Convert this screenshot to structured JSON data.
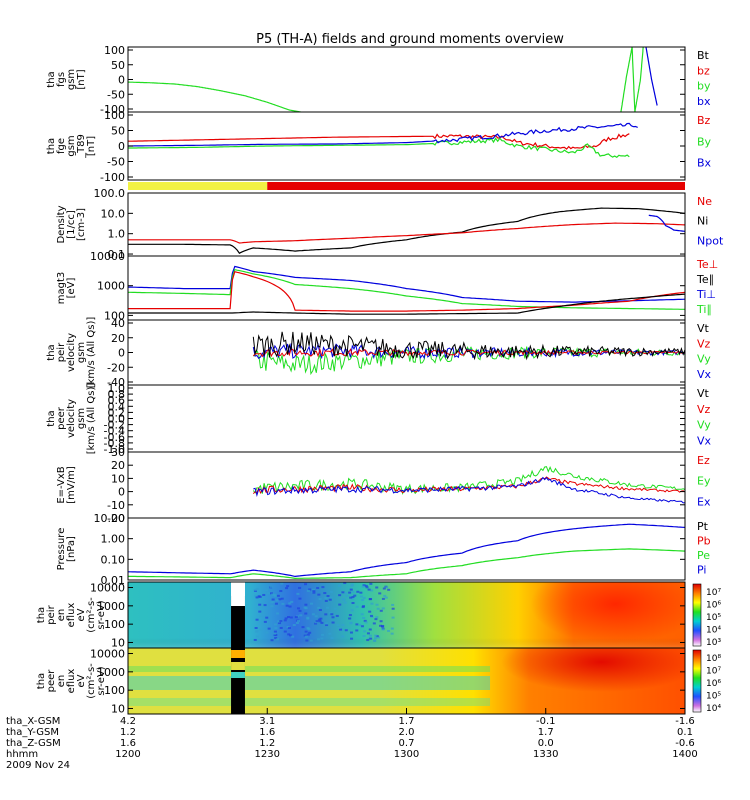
{
  "title": "P5 (TH-A) fields and ground moments overview",
  "colors": {
    "black": "#000000",
    "red": "#e60000",
    "green": "#22dd22",
    "blue": "#0000dd",
    "yellow": "#f2f244"
  },
  "chart_data": [
    {
      "type": "line",
      "panel": "fgs",
      "ylabel": [
        "tha",
        "fgs",
        "gsm",
        "[nT]"
      ],
      "ylim": [
        -100,
        100
      ],
      "ticks": [
        "100",
        "50",
        "0",
        "-50",
        "-100"
      ],
      "legend": [
        {
          "label": "Bt",
          "color": "#000000"
        },
        {
          "label": "bz",
          "color": "#e60000"
        },
        {
          "label": "by",
          "color": "#22dd22"
        },
        {
          "label": "bx",
          "color": "#0000dd"
        }
      ],
      "series": [
        {
          "color": "#22dd22",
          "x": [
            12.0,
            12.08,
            12.17,
            12.25,
            12.33,
            12.42,
            12.5,
            12.58,
            12.62
          ],
          "y": [
            -8,
            -10,
            -14,
            -22,
            -34,
            -50,
            -70,
            -94,
            -100
          ]
        },
        {
          "color": "#22dd22",
          "x": [
            13.77,
            13.79,
            13.81,
            13.82,
            13.84,
            13.85
          ],
          "y": [
            -100,
            10,
            100,
            -100,
            0,
            100
          ]
        },
        {
          "color": "#0000dd",
          "x": [
            13.86,
            13.87,
            13.88,
            13.9,
            13.9
          ],
          "y": [
            100,
            50,
            0,
            -80,
            -100
          ]
        }
      ]
    },
    {
      "type": "line",
      "panel": "fge",
      "ylabel": [
        "tha",
        "fge",
        "gsm",
        "_T89",
        "[nT]"
      ],
      "ylim": [
        -100,
        100
      ],
      "ticks": [
        "100",
        "50",
        "0",
        "-50",
        "-100"
      ],
      "legend": [
        {
          "label": "Bz",
          "color": "#e60000"
        },
        {
          "label": "By",
          "color": "#22dd22"
        },
        {
          "label": "Bx",
          "color": "#0000dd"
        }
      ],
      "series": [
        {
          "color": "#e60000",
          "x": [
            12.0,
            12.25,
            12.5,
            12.75,
            13.0,
            13.17,
            13.35,
            13.4,
            13.5,
            13.6,
            13.68,
            13.72,
            13.8
          ],
          "y": [
            14,
            18,
            22,
            26,
            28,
            29,
            25,
            10,
            0,
            -8,
            0,
            20,
            35
          ]
        },
        {
          "color": "#22dd22",
          "x": [
            12.0,
            12.25,
            12.5,
            12.75,
            13.0,
            13.17,
            13.33,
            13.4,
            13.5,
            13.6,
            13.65,
            13.7,
            13.8
          ],
          "y": [
            -6,
            -4,
            0,
            2,
            4,
            10,
            18,
            0,
            -10,
            -20,
            0,
            -28,
            -30
          ]
        },
        {
          "color": "#0000dd",
          "x": [
            12.0,
            12.25,
            12.5,
            12.75,
            13.0,
            13.17,
            13.33,
            13.5,
            13.67,
            13.75,
            13.82,
            13.83
          ],
          "y": [
            0,
            2,
            5,
            6,
            10,
            18,
            30,
            45,
            55,
            58,
            62,
            50
          ]
        }
      ],
      "spiky": true
    },
    {
      "type": "table",
      "panel": "mode-bar",
      "segments": [
        {
          "x0": 12.0,
          "x1": 12.5,
          "color": "#f2f244"
        },
        {
          "x0": 12.5,
          "x1": 14.0,
          "color": "#e60000"
        }
      ]
    },
    {
      "type": "line",
      "panel": "density",
      "yscale": "log",
      "ylabel": [
        "Density",
        "[1/cc]",
        "[cm-3]"
      ],
      "ylim": [
        0.08,
        100
      ],
      "ticks": [
        "100.0",
        "10.0",
        "1.0",
        "0.1"
      ],
      "tickvals": [
        100,
        10,
        1,
        0.1
      ],
      "legend": [
        {
          "label": "Ne",
          "color": "#e60000"
        },
        {
          "label": "Ni",
          "color": "#000000"
        },
        {
          "label": "Npot",
          "color": "#0000dd"
        }
      ],
      "series": [
        {
          "color": "#000000",
          "x": [
            12.0,
            12.2,
            12.37,
            12.4,
            12.45,
            12.6,
            12.8,
            13.0,
            13.2,
            13.4,
            13.55,
            13.7,
            13.83,
            13.9,
            14.0
          ],
          "y": [
            0.3,
            0.3,
            0.28,
            0.11,
            0.2,
            0.14,
            0.2,
            0.5,
            1.2,
            4,
            12,
            18,
            17,
            14,
            10
          ]
        },
        {
          "color": "#e60000",
          "x": [
            12.0,
            12.37,
            12.4,
            12.45,
            12.6,
            12.8,
            13.0,
            13.2,
            13.4,
            13.6,
            13.75,
            13.9,
            14.0
          ],
          "y": [
            0.5,
            0.5,
            0.35,
            0.4,
            0.45,
            0.6,
            0.8,
            1.1,
            1.8,
            2.8,
            3.3,
            3.1,
            2.7
          ]
        },
        {
          "color": "#0000dd",
          "x": [
            13.87,
            13.9,
            13.93,
            13.96,
            14.0
          ],
          "y": [
            8,
            7,
            2.5,
            1.5,
            1.3
          ]
        }
      ]
    },
    {
      "type": "line",
      "panel": "temperature",
      "yscale": "log",
      "ylabel": [
        "magt3",
        "[eV]"
      ],
      "ylim": [
        70,
        10000
      ],
      "ticks": [
        "10000",
        "1000",
        "100"
      ],
      "tickvals": [
        10000,
        1000,
        100
      ],
      "legend": [
        {
          "label": "Te⊥",
          "color": "#e60000"
        },
        {
          "label": "Te∥",
          "color": "#000000"
        },
        {
          "label": "Ti⊥",
          "color": "#0000dd"
        },
        {
          "label": "Ti∥",
          "color": "#22dd22"
        }
      ],
      "series": [
        {
          "color": "#0000dd",
          "x": [
            12.0,
            12.2,
            12.37,
            12.38,
            12.45,
            12.6,
            12.8,
            13.0,
            13.2,
            13.4,
            13.6,
            13.8,
            14.0
          ],
          "y": [
            900,
            800,
            800,
            4500,
            3000,
            1900,
            1500,
            800,
            400,
            300,
            280,
            310,
            350
          ]
        },
        {
          "color": "#22dd22",
          "x": [
            12.0,
            12.2,
            12.37,
            12.38,
            12.45,
            12.6,
            12.8,
            13.0,
            13.2,
            13.4,
            13.6,
            13.8,
            14.0
          ],
          "y": [
            600,
            550,
            500,
            3500,
            2500,
            1100,
            800,
            450,
            250,
            200,
            180,
            170,
            160
          ]
        },
        {
          "color": "#e60000",
          "x": [
            12.0,
            12.37,
            12.38,
            12.45,
            12.6,
            12.8,
            13.0,
            13.2,
            13.4,
            13.6,
            13.8,
            14.0
          ],
          "y": [
            170,
            170,
            3000,
            2000,
            150,
            140,
            140,
            150,
            170,
            220,
            300,
            600
          ]
        },
        {
          "color": "#000000",
          "x": [
            12.0,
            12.37,
            12.45,
            12.6,
            12.8,
            13.0,
            13.2,
            13.4,
            13.55,
            13.7,
            13.85,
            14.0
          ],
          "y": [
            120,
            120,
            130,
            120,
            110,
            110,
            115,
            120,
            200,
            300,
            400,
            520
          ]
        }
      ]
    },
    {
      "type": "line",
      "panel": "peir",
      "ylabel": [
        "tha",
        "peir",
        "velocity",
        "gsm",
        "[km/s (All Qs)]"
      ],
      "ylim": [
        -40,
        40
      ],
      "ticks": [
        "40",
        "20",
        "0",
        "-20",
        "-40"
      ],
      "legend": [
        {
          "label": "Vt",
          "color": "#000000"
        },
        {
          "label": "Vz",
          "color": "#e60000"
        },
        {
          "label": "Vy",
          "color": "#22dd22"
        },
        {
          "label": "Vx",
          "color": "#0000dd"
        }
      ],
      "series": [
        {
          "color": "#22dd22",
          "x": [
            12.45,
            12.6,
            12.8,
            13.0,
            13.2,
            13.4,
            13.6,
            13.8,
            14.0
          ],
          "y": [
            -10,
            -15,
            -10,
            -5,
            -2,
            0,
            0,
            0,
            0
          ],
          "noise": 14
        },
        {
          "color": "#0000dd",
          "x": [
            12.45,
            12.6,
            12.8,
            13.0,
            13.2,
            13.4,
            13.6,
            13.8,
            14.0
          ],
          "y": [
            0,
            2,
            2,
            0,
            0,
            0,
            0,
            0,
            0
          ],
          "noise": 10
        },
        {
          "color": "#e60000",
          "x": [
            12.45,
            12.6,
            12.8,
            13.0,
            13.2,
            13.4,
            13.6,
            13.8,
            14.0
          ],
          "y": [
            0,
            0,
            0,
            0,
            0,
            0,
            0,
            0,
            0
          ],
          "noise": 5
        },
        {
          "color": "#000000",
          "x": [
            12.45,
            12.6,
            12.8,
            13.0,
            13.2,
            13.4,
            13.6,
            13.8,
            14.0
          ],
          "y": [
            8,
            12,
            8,
            4,
            2,
            1,
            1,
            1,
            1
          ],
          "noise": 16
        }
      ]
    },
    {
      "type": "line",
      "panel": "peer",
      "ylabel": [
        "tha",
        "peer",
        "velocity",
        "gsm",
        "[km/s (All Qs)]"
      ],
      "ylim": [
        -1,
        1
      ],
      "ticks": [
        "1.0",
        "0.8",
        "0.6",
        "0.4",
        "0.2",
        "0.0",
        "-0.2",
        "-0.4",
        "-0.6",
        "-0.8",
        "-1.0"
      ],
      "legend": [
        {
          "label": "Vt",
          "color": "#000000"
        },
        {
          "label": "Vz",
          "color": "#e60000"
        },
        {
          "label": "Vy",
          "color": "#22dd22"
        },
        {
          "label": "Vx",
          "color": "#0000dd"
        }
      ],
      "series": []
    },
    {
      "type": "line",
      "panel": "efield",
      "ylabel": [
        "E=-VxB",
        "[mV/m]"
      ],
      "ylim": [
        -20,
        30
      ],
      "ticks": [
        "30",
        "20",
        "10",
        "0",
        "-10",
        "-20"
      ],
      "tickvals": [
        30,
        20,
        10,
        0,
        -10,
        -20
      ],
      "legend": [
        {
          "label": "Ez",
          "color": "#e60000"
        },
        {
          "label": "Ey",
          "color": "#22dd22"
        },
        {
          "label": "Ex",
          "color": "#0000dd"
        }
      ],
      "series": [
        {
          "color": "#22dd22",
          "x": [
            12.45,
            12.6,
            12.8,
            13.0,
            13.2,
            13.4,
            13.5,
            13.6,
            13.8,
            14.0
          ],
          "y": [
            2,
            4,
            6,
            2,
            3,
            8,
            18,
            12,
            5,
            2
          ],
          "noise": 5
        },
        {
          "color": "#e60000",
          "x": [
            12.45,
            12.6,
            12.8,
            13.0,
            13.2,
            13.4,
            13.5,
            13.6,
            13.8,
            14.0
          ],
          "y": [
            1,
            2,
            3,
            1,
            2,
            4,
            10,
            6,
            2,
            0
          ],
          "noise": 3
        },
        {
          "color": "#0000dd",
          "x": [
            12.45,
            12.6,
            12.8,
            13.0,
            13.2,
            13.4,
            13.5,
            13.6,
            13.8,
            14.0
          ],
          "y": [
            0,
            1,
            2,
            1,
            2,
            4,
            10,
            2,
            -5,
            -8
          ],
          "noise": 3
        }
      ]
    },
    {
      "type": "line",
      "panel": "pressure",
      "yscale": "log",
      "ylabel": [
        "Pressure",
        "[nPa]"
      ],
      "ylim": [
        0.01,
        10
      ],
      "ticks": [
        "10.00",
        "1.00",
        "0.10",
        "0.01"
      ],
      "tickvals": [
        10,
        1,
        0.1,
        0.01
      ],
      "legend": [
        {
          "label": "Pt",
          "color": "#000000"
        },
        {
          "label": "Pb",
          "color": "#e60000"
        },
        {
          "label": "Pe",
          "color": "#22dd22"
        },
        {
          "label": "Pi",
          "color": "#0000dd"
        }
      ],
      "series": [
        {
          "color": "#0000dd",
          "x": [
            12.0,
            12.2,
            12.37,
            12.45,
            12.6,
            12.8,
            13.0,
            13.2,
            13.4,
            13.6,
            13.8,
            14.0
          ],
          "y": [
            0.025,
            0.022,
            0.02,
            0.03,
            0.015,
            0.025,
            0.07,
            0.2,
            0.8,
            3,
            5,
            3.5
          ]
        },
        {
          "color": "#22dd22",
          "x": [
            12.0,
            12.2,
            12.37,
            12.45,
            12.6,
            12.8,
            13.0,
            13.2,
            13.4,
            13.6,
            13.8,
            14.0
          ],
          "y": [
            0.015,
            0.014,
            0.013,
            0.02,
            0.012,
            0.013,
            0.02,
            0.05,
            0.12,
            0.25,
            0.32,
            0.25
          ]
        }
      ]
    },
    {
      "type": "heatmap",
      "panel": "peir-spec",
      "ylabel": [
        "tha",
        "peir",
        "en",
        "eflux",
        "eV",
        "(cm²-s-",
        "sr-eV)"
      ],
      "yscale": "log",
      "ylim": [
        5,
        20000
      ],
      "ticks": [
        "10000",
        "1000",
        "100",
        "10"
      ],
      "tickvals": [
        10000,
        1000,
        100,
        10
      ],
      "colorbar": [
        "10⁷",
        "10⁶",
        "10⁵",
        "10⁴",
        "10³"
      ],
      "gap": [
        12.37,
        12.42
      ]
    },
    {
      "type": "heatmap",
      "panel": "peer-spec",
      "ylabel": [
        "tha",
        "peer",
        "en",
        "eflux",
        "eV",
        "(cm²-s-",
        "sr-eV)"
      ],
      "yscale": "log",
      "ylim": [
        5,
        20000
      ],
      "ticks": [
        "10000",
        "1000",
        "100",
        "10"
      ],
      "tickvals": [
        10000,
        1000,
        100,
        10
      ],
      "colorbar": [
        "10⁸",
        "10⁷",
        "10⁶",
        "10⁵",
        "10⁴"
      ],
      "gap": [
        12.37,
        12.42
      ]
    }
  ],
  "xaxis": {
    "range": [
      12.0,
      14.0
    ],
    "tickpos": [
      12.0,
      12.5,
      13.0,
      13.5,
      14.0
    ],
    "rows": [
      {
        "label": "tha_X-GSM",
        "values": [
          "4.2",
          "3.1",
          "1.7",
          "-0.1",
          "-1.6"
        ]
      },
      {
        "label": "tha_Y-GSM",
        "values": [
          "1.2",
          "1.6",
          "2.0",
          "1.7",
          "0.1"
        ]
      },
      {
        "label": "tha_Z-GSM",
        "values": [
          "1.6",
          "1.2",
          "0.7",
          "0.0",
          "-0.6"
        ]
      },
      {
        "label": "hhmm",
        "values": [
          "1200",
          "1230",
          "1300",
          "1330",
          "1400"
        ]
      }
    ],
    "date": "2009 Nov 24"
  }
}
